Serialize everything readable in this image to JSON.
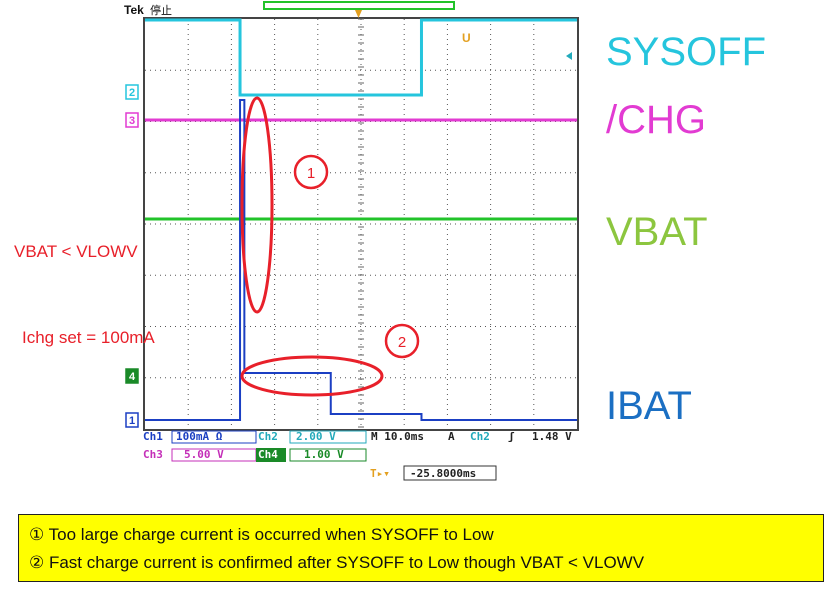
{
  "chart_data": {
    "type": "line",
    "title": "",
    "xlabel": "",
    "ylabel": "",
    "scope_brand": "Tek",
    "scope_status": "停止",
    "series": [
      {
        "name": "SYSOFF",
        "color": "#25c5dd",
        "x": [
          0,
          2.2,
          2.2,
          6.4,
          6.4,
          10
        ],
        "y": [
          0.92,
          0.92,
          0.55,
          0.55,
          0.92,
          0.92
        ]
      },
      {
        "name": "/CHG",
        "color": "#e23bd2",
        "x": [
          0,
          10
        ],
        "y": [
          0.5,
          0.5
        ]
      },
      {
        "name": "VBAT",
        "color": "#22c32a",
        "x": [
          0,
          10
        ],
        "y": [
          0.25,
          0.25
        ]
      },
      {
        "name": "IBAT",
        "color": "#1b3fc3",
        "x": [
          0,
          2.2,
          2.2,
          2.3,
          2.3,
          4.3,
          4.3,
          6.4,
          6.4,
          10
        ],
        "y": [
          0.0,
          0.0,
          0.75,
          0.75,
          0.12,
          0.12,
          0.02,
          0.02,
          0.0,
          0.0
        ]
      }
    ],
    "channel_markers": [
      "2",
      "3",
      "4",
      "1"
    ],
    "trigger_marker": "T",
    "readout": {
      "row1": [
        "Ch1",
        "100mA Ω",
        "Ch2",
        "2.00 V",
        "M 10.0ms",
        "A",
        "Ch2",
        "ʃ",
        "1.48 V"
      ],
      "row2": [
        "Ch3",
        "5.00 V",
        "Ch4",
        "1.00 V"
      ],
      "row3": [
        "T▸▾",
        "-25.8000ms"
      ]
    }
  },
  "labels": {
    "sysoff": "SYSOFF",
    "chg": "/CHG",
    "vbat": "VBAT",
    "ibat": "IBAT",
    "vbat_condition": "VBAT <  VLOWV",
    "ichg_set": "Ichg set = 100mA",
    "marker1": "1",
    "marker2": "2"
  },
  "colors": {
    "sysoff": "#25c5dd",
    "chg": "#e23bd2",
    "vbat": "#8cc63f",
    "ibat": "#1b6fc3",
    "annotation": "#e8202a",
    "note_bg": "#ffff00"
  },
  "notes": [
    "①  Too large charge current is occurred when SYSOFF to Low",
    "②  Fast charge current is confirmed after SYSOFF to Low though VBAT < VLOWV"
  ]
}
